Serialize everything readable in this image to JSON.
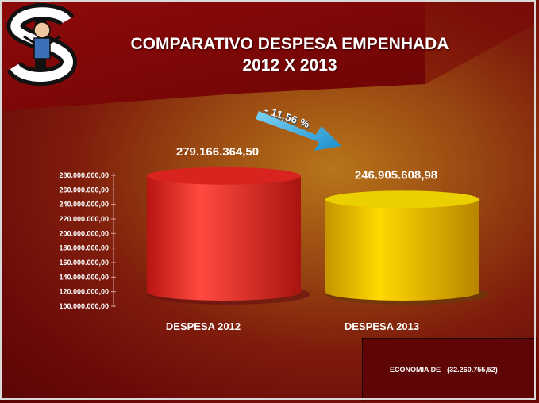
{
  "title": {
    "line1": "COMPARATIVO DESPESA EMPENHADA",
    "line2": "2012 X 2013"
  },
  "change_label": "- 11,56 %",
  "economy": {
    "label": "ECONOMIA DE",
    "value": "(32.260.755,52)"
  },
  "colors": {
    "bar_2012": "#e8322c",
    "bar_2013": "#f2c400",
    "arrow": "#1aa3dc"
  },
  "chart_data": {
    "type": "bar",
    "style": "3d-cylinder",
    "categories": [
      "DESPESA 2012",
      "DESPESA 2013"
    ],
    "values": [
      279166364.5,
      246905608.98
    ],
    "data_labels": [
      "279.166.364,50",
      "246.905.608,98"
    ],
    "ylim": [
      100000000,
      280000000
    ],
    "y_ticks": [
      100000000,
      120000000,
      140000000,
      160000000,
      180000000,
      200000000,
      220000000,
      240000000,
      260000000,
      280000000
    ],
    "y_tick_labels": [
      "100.000.000,00",
      "120.000.000,00",
      "140.000.000,00",
      "160.000.000,00",
      "180.000.000,00",
      "200.000.000,00",
      "220.000.000,00",
      "240.000.000,00",
      "260.000.000,00",
      "280.000.000,00"
    ],
    "grid": false,
    "legend": "none"
  }
}
